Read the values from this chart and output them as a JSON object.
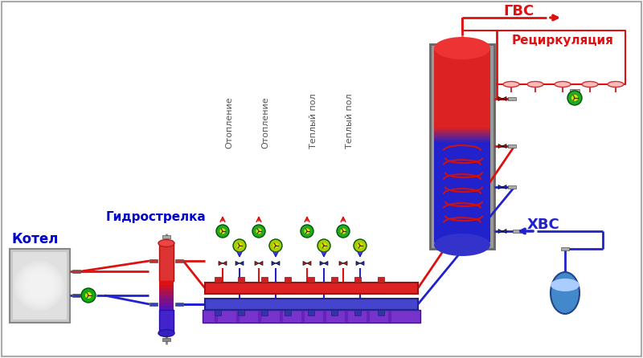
{
  "bg_color": "#ffffff",
  "labels": {
    "kotel": "Котел",
    "gidro": "Гидрострелка",
    "gvs": "ГВС",
    "recirc": "Рециркуляция",
    "hvs": "ХВС",
    "otoplenie1": "Отопление",
    "otoplenie2": "Отопление",
    "teplyi1": "Теплый пол",
    "teplyi2": "Теплый пол"
  },
  "colors": {
    "red": "#dd1111",
    "blue": "#2222cc",
    "dark_gray": "#555555",
    "green": "#11aa11",
    "white": "#ffffff",
    "header_blue": "#0000cc"
  }
}
